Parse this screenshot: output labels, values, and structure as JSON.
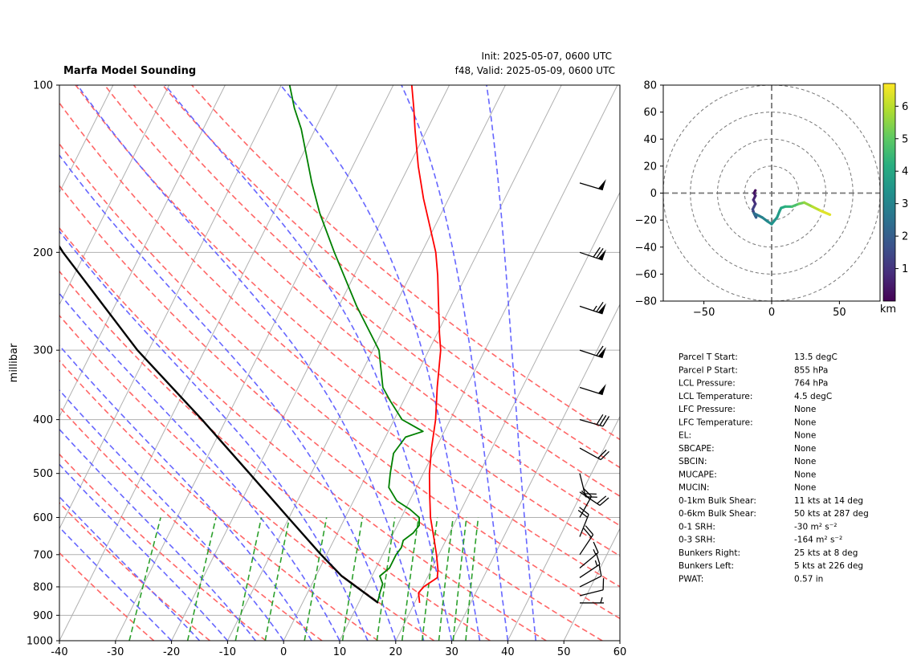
{
  "header": {
    "title": "Marfa Model Sounding",
    "init": "Init: 2025-05-07, 0600 UTC",
    "valid": "f48, Valid: 2025-05-09, 0600 UTC"
  },
  "colors": {
    "temperature": "#ff0000",
    "dewpoint": "#008000",
    "parcel": "#000000",
    "dry_adiabat": "#ff6666",
    "moist_adiabat": "#6666ff",
    "mixing_ratio": "#2ca02c",
    "hodograph_colormap": "viridis"
  },
  "chart_data": [
    {
      "type": "line",
      "subtype": "skew-t log-p",
      "ylabel": "millibar",
      "xlabel": "",
      "xlim": [
        -40,
        60
      ],
      "ylim": [
        1000,
        100
      ],
      "y_scale": "log",
      "x_ticks": [
        "-40",
        "-30",
        "-20",
        "-10",
        "0",
        "10",
        "20",
        "30",
        "40",
        "50",
        "60"
      ],
      "y_ticks": [
        "100",
        "200",
        "300",
        "400",
        "500",
        "600",
        "700",
        "800",
        "900",
        "1000"
      ],
      "y_tick_values": [
        100,
        200,
        300,
        400,
        500,
        600,
        700,
        800,
        900,
        1000
      ],
      "grid": true,
      "series": [
        {
          "key": "temperature",
          "pressure": [
            855,
            820,
            800,
            770,
            745,
            700,
            650,
            600,
            550,
            500,
            450,
            400,
            350,
            300,
            280,
            250,
            220,
            200,
            180,
            160,
            140,
            120,
            110,
            100
          ],
          "values": [
            20.9,
            19.8,
            20.2,
            21.8,
            21.2,
            19.6,
            17.5,
            15.2,
            13.2,
            11.1,
            9.2,
            7.4,
            4.8,
            2.1,
            0.4,
            -2.2,
            -5.1,
            -7.5,
            -10.8,
            -14.5,
            -18.3,
            -22.2,
            -24.3,
            -26.7
          ]
        },
        {
          "key": "dewpoint",
          "pressure": [
            855,
            840,
            820,
            790,
            765,
            740,
            700,
            680,
            660,
            640,
            620,
            600,
            580,
            560,
            530,
            500,
            460,
            430,
            420,
            400,
            370,
            350,
            300,
            250,
            200,
            170,
            150,
            120,
            110,
            100
          ],
          "values": [
            13.3,
            13.2,
            12.9,
            12.6,
            11.4,
            12.4,
            12.4,
            12.7,
            12.4,
            13.5,
            13.9,
            13.2,
            10.8,
            7.7,
            5.1,
            4.1,
            2.9,
            3.6,
            6.2,
            1.4,
            -2.4,
            -4.9,
            -8.9,
            -16.8,
            -25.6,
            -31.7,
            -35.8,
            -42.5,
            -45.6,
            -48.5
          ]
        },
        {
          "key": "parcel",
          "pressure": [
            855,
            764,
            700,
            600,
            500,
            400,
            300,
            200,
            150,
            100
          ],
          "values": [
            13.5,
            4.5,
            -1.0,
            -10.2,
            -21.0,
            -34.3,
            -52.0,
            -74.0,
            -88.0,
            -105.0
          ]
        }
      ],
      "background_lines": {
        "dry_adiabats_K": [
          250,
          260,
          270,
          280,
          290,
          300,
          310,
          320,
          330,
          340,
          350,
          360,
          370,
          380,
          390,
          400
        ],
        "moist_adiabats_C": [
          -20,
          -15,
          -10,
          -5,
          0,
          5,
          10,
          15,
          20,
          25,
          30,
          35,
          40,
          45
        ],
        "mixing_ratio_gkg": [
          0.4,
          1,
          2,
          3,
          5,
          8,
          12,
          16,
          20,
          24,
          28,
          32
        ]
      },
      "wind_barbs": [
        {
          "pressure": 855,
          "u": -5,
          "v": 0
        },
        {
          "pressure": 830,
          "u": -8,
          "v": -2
        },
        {
          "pressure": 800,
          "u": -10,
          "v": -5
        },
        {
          "pressure": 770,
          "u": -12,
          "v": -8
        },
        {
          "pressure": 740,
          "u": -12,
          "v": -10
        },
        {
          "pressure": 700,
          "u": -10,
          "v": -15
        },
        {
          "pressure": 650,
          "u": -8,
          "v": -20
        },
        {
          "pressure": 600,
          "u": -10,
          "v": -18
        },
        {
          "pressure": 540,
          "u": -15,
          "v": 10
        },
        {
          "pressure": 500,
          "u": -5,
          "v": 20
        },
        {
          "pressure": 450,
          "u": -18,
          "v": 10
        },
        {
          "pressure": 400,
          "u": -28,
          "v": 8
        },
        {
          "pressure": 350,
          "u": -48,
          "v": 15
        },
        {
          "pressure": 300,
          "u": -55,
          "v": 18
        },
        {
          "pressure": 250,
          "u": -60,
          "v": 20
        },
        {
          "pressure": 200,
          "u": -65,
          "v": 22
        },
        {
          "pressure": 150,
          "u": -50,
          "v": 15
        }
      ]
    },
    {
      "type": "line",
      "subtype": "hodograph",
      "title": "",
      "xlabel": "",
      "ylabel": "",
      "xlim": [
        -80,
        80
      ],
      "ylim": [
        -80,
        80
      ],
      "x_ticks": [
        "−50",
        "0",
        "50"
      ],
      "x_tick_values": [
        -50,
        0,
        50
      ],
      "y_ticks": [
        "80",
        "60",
        "40",
        "20",
        "0",
        "−20",
        "−40",
        "−60",
        "−80"
      ],
      "y_tick_values": [
        80,
        60,
        40,
        20,
        0,
        -20,
        -40,
        -60,
        -80
      ],
      "range_rings": [
        20,
        40,
        60,
        80
      ],
      "colorbar": {
        "label": "km",
        "ticks": [
          "1",
          "2",
          "3",
          "4",
          "5",
          "6"
        ],
        "tick_values": [
          1,
          2,
          3,
          4,
          5,
          6
        ],
        "range": [
          0,
          6.7
        ]
      },
      "series": [
        {
          "key": "wind_profile",
          "u": [
            -12.0,
            -13.0,
            -12.0,
            -13.5,
            -12.0,
            -13.0,
            -14.0,
            -13.0,
            -12.0,
            -11.5,
            -12.5,
            -13.0,
            -11.0,
            -9.0,
            -7.0,
            -3.0,
            0.0,
            4.0,
            6.0,
            7.0,
            10.0,
            15.0,
            20.0,
            24.0,
            30.0,
            36.0,
            43.0
          ],
          "v": [
            2.0,
            0.0,
            -2.0,
            -5.0,
            -8.0,
            -10.0,
            -12.0,
            -15.0,
            -17.0,
            -18.0,
            -16.0,
            -15.0,
            -16.0,
            -17.0,
            -18.0,
            -21.0,
            -23.0,
            -18.0,
            -13.0,
            -11.0,
            -10.0,
            -10.0,
            -8.0,
            -7.0,
            -10.0,
            -13.0,
            -16.0
          ],
          "height_km": [
            0.1,
            0.3,
            0.5,
            0.7,
            0.9,
            1.1,
            1.3,
            1.5,
            1.7,
            1.9,
            2.1,
            2.3,
            2.5,
            2.7,
            2.9,
            3.1,
            3.3,
            3.5,
            3.7,
            3.9,
            4.1,
            4.5,
            5.0,
            5.4,
            5.8,
            6.2,
            6.6
          ]
        }
      ]
    }
  ],
  "stats": [
    {
      "label": "Parcel T Start:",
      "value": "13.5 degC"
    },
    {
      "label": "Parcel P Start:",
      "value": "855 hPa"
    },
    {
      "label": "LCL Pressure:",
      "value": "764 hPa"
    },
    {
      "label": "LCL Temperature:",
      "value": "4.5 degC"
    },
    {
      "label": "LFC Pressure:",
      "value": "None"
    },
    {
      "label": "LFC Temperature:",
      "value": "None"
    },
    {
      "label": "EL:",
      "value": "None"
    },
    {
      "label": "SBCAPE:",
      "value": "None"
    },
    {
      "label": "SBCIN:",
      "value": "None"
    },
    {
      "label": "MUCAPE:",
      "value": "None"
    },
    {
      "label": "MUCIN:",
      "value": "None"
    },
    {
      "label": "0-1km Bulk Shear:",
      "value": "11 kts at 14 deg"
    },
    {
      "label": "0-6km Bulk Shear:",
      "value": "50 kts at 287 deg"
    },
    {
      "label": "0-1 SRH:",
      "value": "-30 m² s⁻²"
    },
    {
      "label": "0-3 SRH:",
      "value": "-164 m² s⁻²"
    },
    {
      "label": "Bunkers Right:",
      "value": "25 kts at 8 deg"
    },
    {
      "label": "Bunkers Left:",
      "value": "5 kts at 226 deg"
    },
    {
      "label": "PWAT:",
      "value": "0.57 in"
    }
  ]
}
